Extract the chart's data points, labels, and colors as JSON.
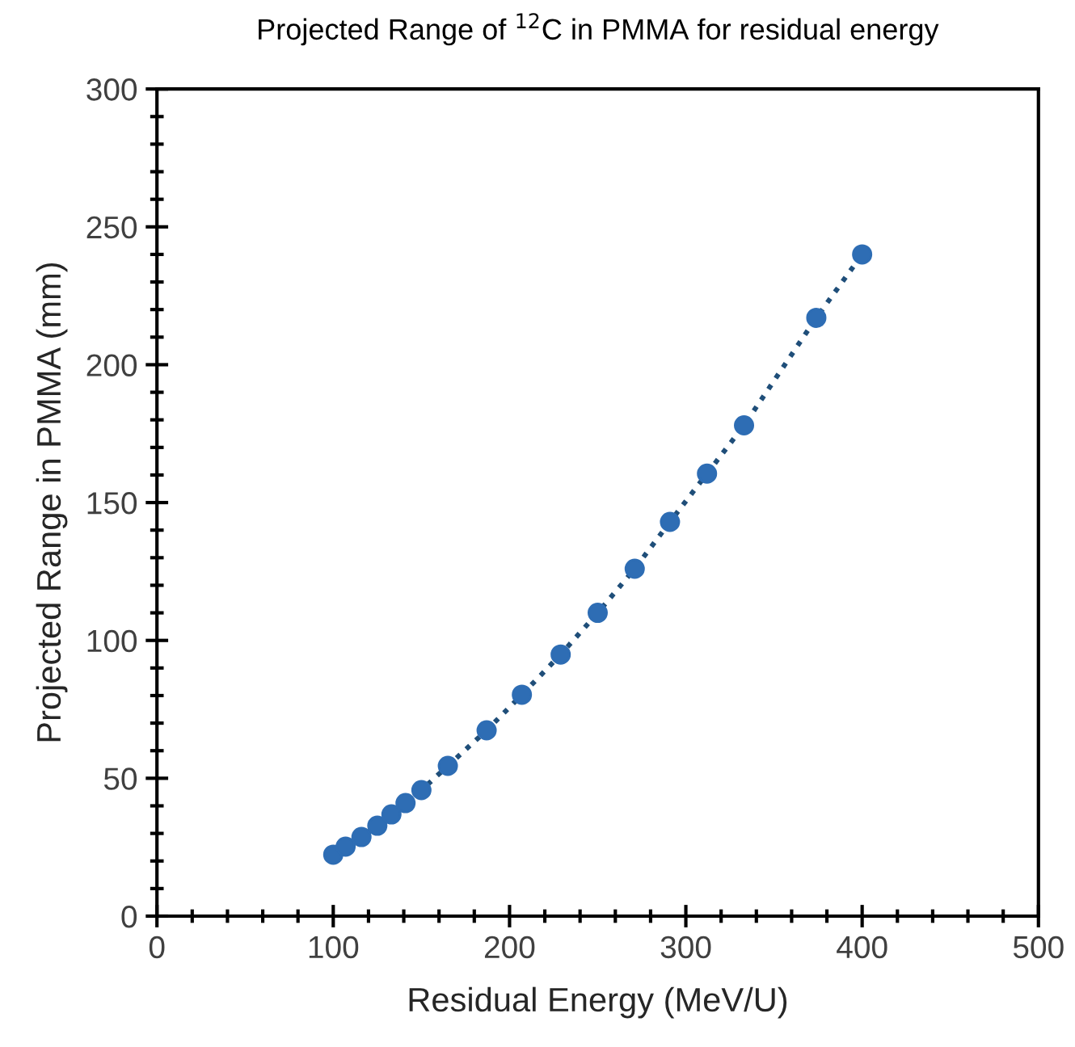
{
  "chart_data": {
    "type": "line",
    "title": "Projected Range of $^{12}$C in PMMA for residual energy",
    "xlabel": "Residual Energy (MeV/U)",
    "ylabel": "Projected Range in PMMA (mm)",
    "series": [
      {
        "color": "#2e6db4",
        "x": [
          100,
          107,
          116,
          125,
          133,
          141,
          150,
          165,
          187,
          207,
          229,
          250,
          271,
          291,
          312,
          333,
          374,
          400
        ],
        "values": [
          22.3,
          25.2,
          28.7,
          32.8,
          36.9,
          41,
          45.7,
          54.5,
          67.4,
          80.3,
          94.9,
          110,
          126,
          143,
          160.5,
          178,
          217,
          240
        ]
      }
    ],
    "xlim": [
      0,
      500
    ],
    "ylim": [
      0,
      300
    ],
    "xticks": [
      0,
      100,
      200,
      300,
      400,
      500
    ],
    "yticks": [
      0,
      50,
      100,
      150,
      200,
      250,
      300
    ],
    "grid": false,
    "legend": false,
    "marker": "circle",
    "line_style": "dotted"
  }
}
